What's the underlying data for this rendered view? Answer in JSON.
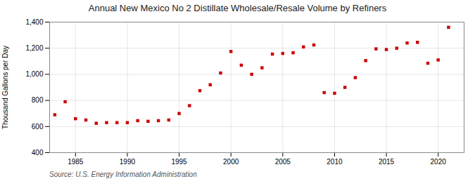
{
  "chart_data": {
    "type": "scatter",
    "title": "Annual New Mexico No 2 Distillate Wholesale/Resale Volume by Refiners",
    "ylabel": "Thousand Gallons per Day",
    "annotation": "Source: U.S. Energy Information Administration",
    "x": [
      1983,
      1984,
      1985,
      1986,
      1987,
      1988,
      1989,
      1990,
      1991,
      1992,
      1993,
      1994,
      1995,
      1996,
      1997,
      1998,
      1999,
      2000,
      2001,
      2002,
      2003,
      2004,
      2005,
      2006,
      2007,
      2008,
      2009,
      2010,
      2011,
      2012,
      2013,
      2014,
      2015,
      2016,
      2017,
      2018,
      2019,
      2020,
      2021
    ],
    "values": [
      690,
      790,
      660,
      650,
      625,
      630,
      630,
      630,
      645,
      640,
      645,
      650,
      700,
      760,
      875,
      920,
      1010,
      1175,
      1070,
      1000,
      1050,
      1155,
      1160,
      1165,
      1210,
      1225,
      860,
      855,
      900,
      975,
      1105,
      1195,
      1190,
      1200,
      1240,
      1245,
      1085,
      1110,
      1360
    ],
    "color": "#cc0000",
    "marker": "square",
    "xlim": [
      1982.5,
      2022.5
    ],
    "xticks": [
      1985,
      1990,
      1995,
      2000,
      2005,
      2010,
      2015,
      2020
    ],
    "ylim": [
      400,
      1400
    ],
    "yticks": [
      400,
      600,
      800,
      {
        "value": 1000,
        "label": "1,000"
      },
      {
        "value": 1200,
        "label": "1,200"
      },
      {
        "value": 1400,
        "label": "1,400"
      }
    ],
    "grid": true
  }
}
